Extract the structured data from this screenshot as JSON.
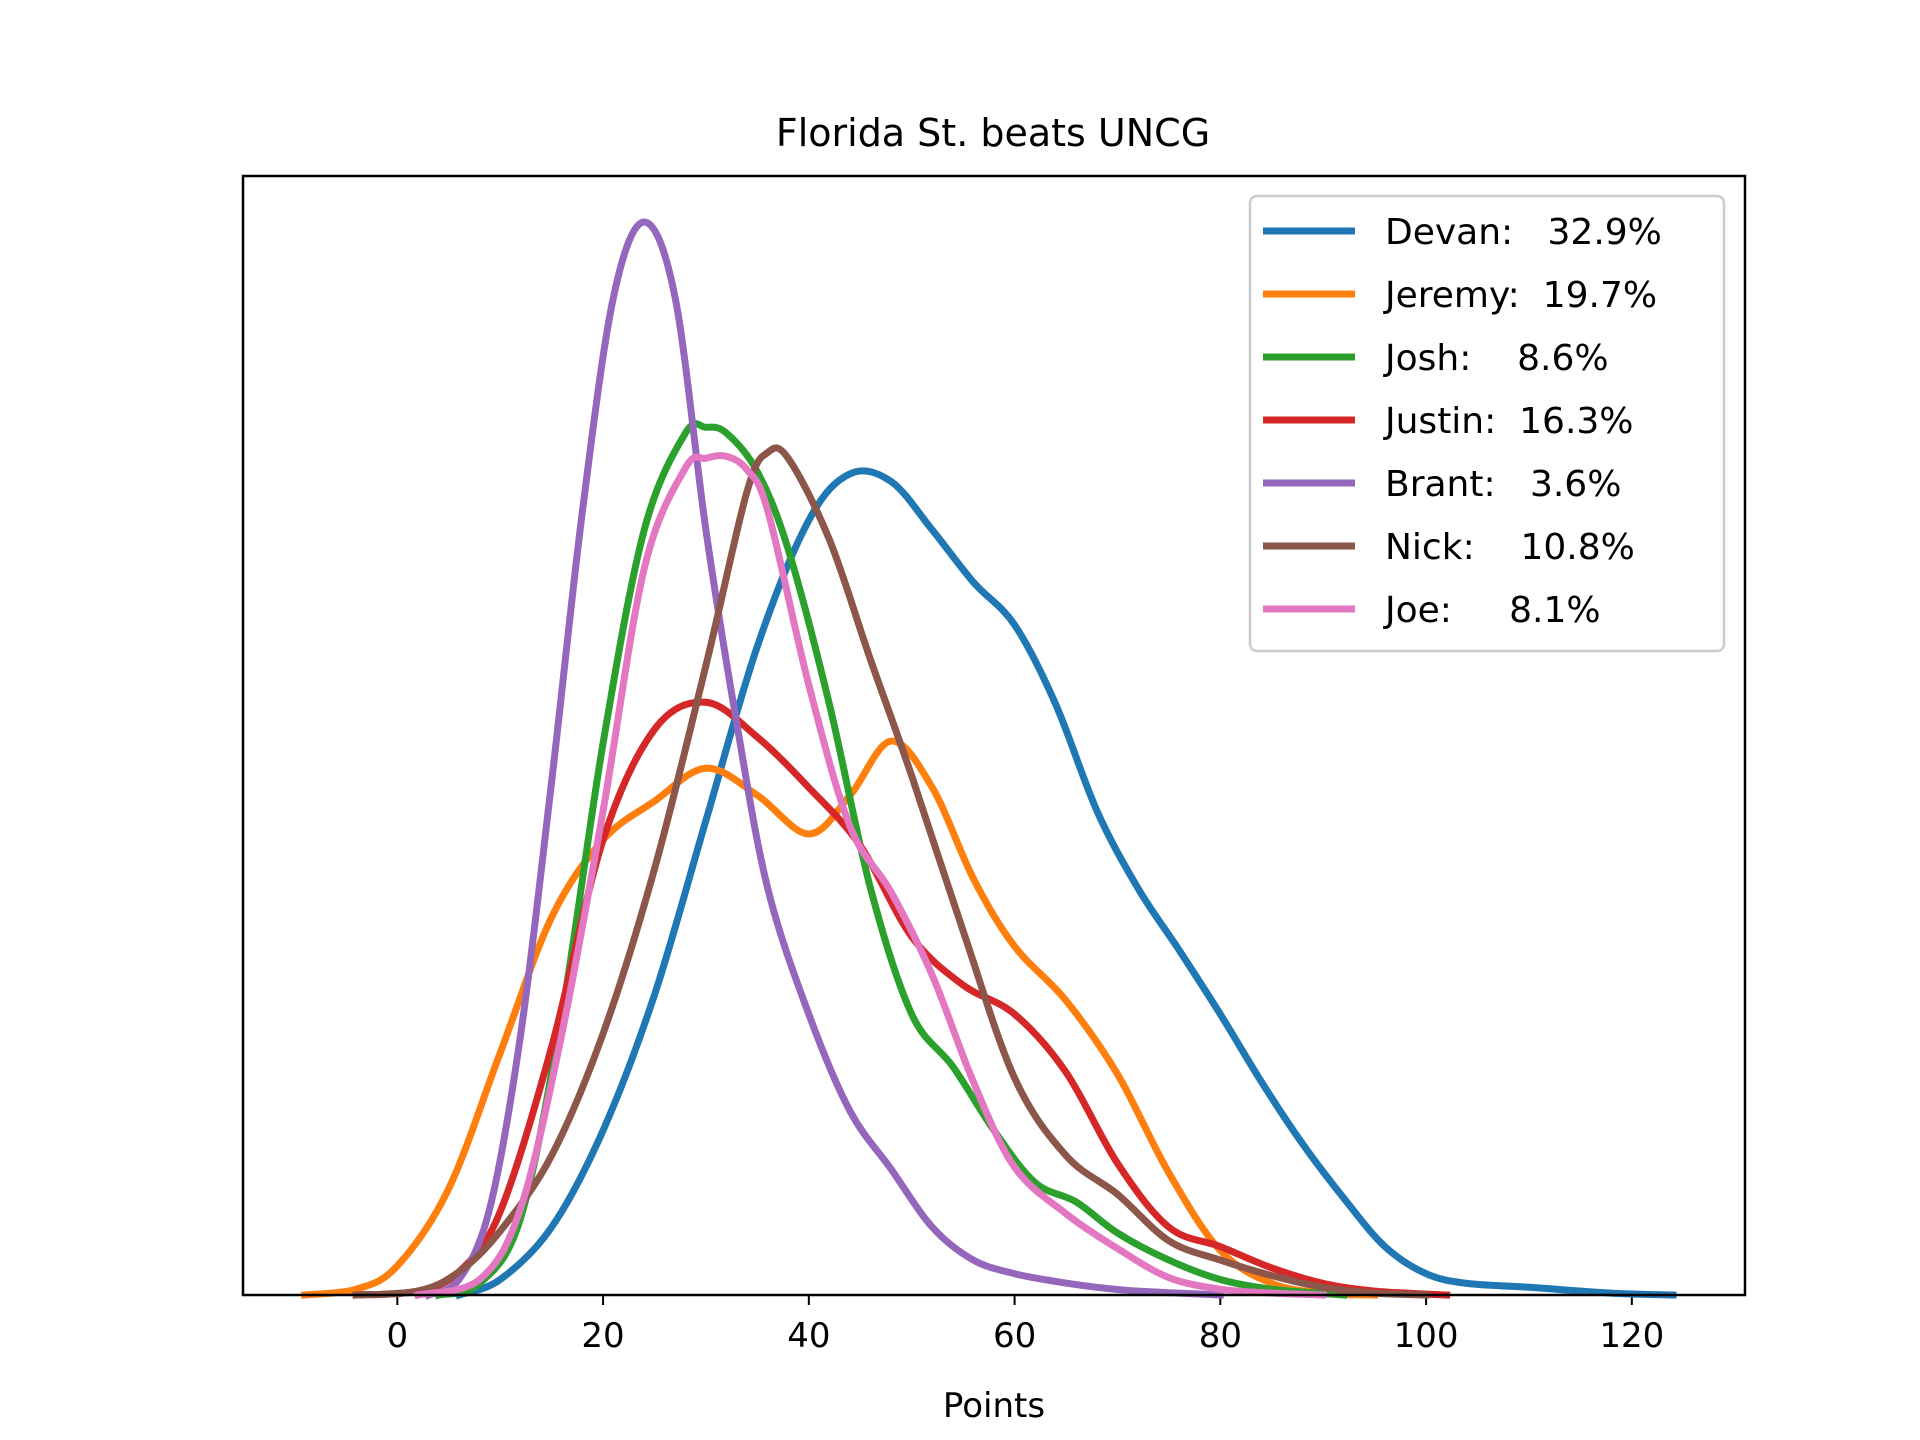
{
  "chart_data": {
    "type": "line",
    "title": "Florida St. beats UNCG",
    "xlabel": "Points",
    "ylabel": "",
    "xlim": [
      -15,
      131
    ],
    "ylim": [
      0,
      0.0554
    ],
    "x_ticks": [
      0,
      20,
      40,
      60,
      80,
      100,
      120
    ],
    "x_tick_labels": [
      "0",
      "20",
      "40",
      "60",
      "80",
      "100",
      "120"
    ],
    "y_ticks_visible": false,
    "grid": false,
    "legend_position": "upper right",
    "series": [
      {
        "name": "Devan:   32.9%",
        "color": "#1f77b4",
        "x": [
          6,
          10,
          15,
          20,
          25,
          30,
          35,
          40,
          44,
          48,
          52,
          56,
          60,
          64,
          68,
          72,
          76,
          80,
          84,
          88,
          92,
          96,
          100,
          104,
          110,
          118,
          124
        ],
        "y": [
          0,
          0.0008,
          0.0035,
          0.0085,
          0.0155,
          0.0245,
          0.0335,
          0.04,
          0.0424,
          0.042,
          0.0395,
          0.0368,
          0.0346,
          0.0305,
          0.025,
          0.021,
          0.0178,
          0.0145,
          0.011,
          0.0078,
          0.005,
          0.0025,
          0.0011,
          0.0006,
          0.0004,
          0.0001,
          0
        ]
      },
      {
        "name": "Jeremy:  19.7%",
        "color": "#ff7f0e",
        "x": [
          -9,
          -4,
          0,
          5,
          10,
          15,
          20,
          25,
          30,
          35,
          40,
          44,
          48,
          52,
          56,
          60,
          65,
          70,
          75,
          80,
          85,
          90,
          95
        ],
        "y": [
          0,
          0.0003,
          0.0015,
          0.0055,
          0.0125,
          0.0195,
          0.0235,
          0.0255,
          0.0272,
          0.0258,
          0.0238,
          0.0258,
          0.0286,
          0.0262,
          0.0215,
          0.018,
          0.0152,
          0.0114,
          0.0063,
          0.0023,
          0.0006,
          0.0001,
          0
        ]
      },
      {
        "name": "Josh:    8.6%",
        "color": "#2ca02c",
        "x": [
          4,
          8,
          12,
          16,
          20,
          24,
          28,
          30,
          32,
          35,
          38,
          42,
          46,
          50,
          54,
          58,
          62,
          66,
          70,
          75,
          80,
          85,
          92
        ],
        "y": [
          0,
          0.0006,
          0.004,
          0.0145,
          0.0285,
          0.0395,
          0.0445,
          0.0448,
          0.0445,
          0.0425,
          0.0385,
          0.0305,
          0.021,
          0.0145,
          0.0118,
          0.0085,
          0.0058,
          0.0048,
          0.0032,
          0.0018,
          0.0008,
          0.0003,
          0
        ]
      },
      {
        "name": "Justin:  16.3%",
        "color": "#d62728",
        "x": [
          -4,
          2,
          6,
          10,
          15,
          20,
          25,
          30,
          35,
          40,
          45,
          50,
          55,
          60,
          65,
          70,
          75,
          80,
          85,
          90,
          95,
          102
        ],
        "y": [
          0,
          0.0002,
          0.0012,
          0.0043,
          0.0128,
          0.0235,
          0.0292,
          0.0306,
          0.0288,
          0.0262,
          0.0232,
          0.0185,
          0.016,
          0.0145,
          0.0115,
          0.0068,
          0.0035,
          0.0025,
          0.0014,
          0.0006,
          0.0002,
          0
        ]
      },
      {
        "name": "Brant:   3.6%",
        "color": "#9467bd",
        "x": [
          3,
          6,
          9,
          12,
          15,
          18,
          21,
          24,
          27,
          30,
          33,
          36,
          40,
          44,
          48,
          52,
          56,
          60,
          64,
          68,
          72,
          76,
          80
        ],
        "y": [
          0,
          0.0008,
          0.0045,
          0.0135,
          0.0265,
          0.0405,
          0.0515,
          0.0554,
          0.0515,
          0.0395,
          0.0295,
          0.021,
          0.0145,
          0.0095,
          0.0065,
          0.0035,
          0.0018,
          0.0011,
          0.0007,
          0.0004,
          0.0002,
          0.0001,
          0
        ]
      },
      {
        "name": "Nick:    10.8%",
        "color": "#8c564b",
        "x": [
          -4,
          2,
          6,
          10,
          15,
          20,
          25,
          30,
          34,
          36,
          38,
          42,
          46,
          50,
          55,
          60,
          65,
          70,
          75,
          80,
          85,
          90,
          95,
          100
        ],
        "y": [
          0,
          0.0002,
          0.0012,
          0.0033,
          0.0072,
          0.0135,
          0.022,
          0.0325,
          0.0415,
          0.0435,
          0.0432,
          0.039,
          0.0328,
          0.0268,
          0.0188,
          0.0112,
          0.0072,
          0.0052,
          0.0028,
          0.0018,
          0.001,
          0.0004,
          0.0001,
          0
        ]
      },
      {
        "name": "Joe:     8.1%",
        "color": "#e377c2",
        "x": [
          2,
          8,
          12,
          16,
          20,
          24,
          28,
          30,
          32,
          34,
          36,
          40,
          44,
          48,
          52,
          56,
          60,
          65,
          70,
          75,
          80,
          85,
          90
        ],
        "y": [
          0,
          0.0008,
          0.0045,
          0.0135,
          0.025,
          0.0375,
          0.0427,
          0.0432,
          0.0433,
          0.0426,
          0.0405,
          0.0315,
          0.0242,
          0.0208,
          0.0165,
          0.011,
          0.0066,
          0.0042,
          0.0024,
          0.0009,
          0.0003,
          0.0001,
          0
        ]
      }
    ]
  }
}
